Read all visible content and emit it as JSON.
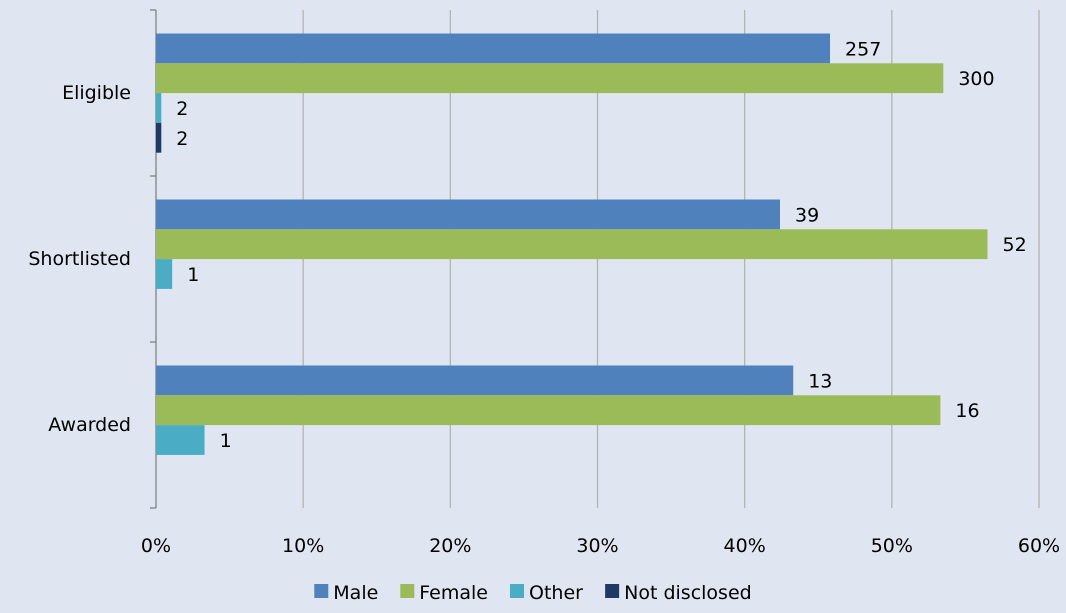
{
  "chart_data": {
    "type": "bar",
    "orientation": "horizontal",
    "categories": [
      "Eligible",
      "Shortlisted",
      "Awarded"
    ],
    "series": [
      {
        "name": "Male",
        "color": "#4f81bd",
        "values": [
          45.8,
          42.4,
          43.3
        ],
        "labels": [
          "257",
          "39",
          "13"
        ]
      },
      {
        "name": "Female",
        "color": "#9bbb59",
        "values": [
          53.5,
          56.5,
          53.3
        ],
        "labels": [
          "300",
          "52",
          "16"
        ]
      },
      {
        "name": "Other",
        "color": "#4bacc6",
        "values": [
          0.36,
          1.1,
          3.3
        ],
        "labels": [
          "2",
          "1",
          "1"
        ]
      },
      {
        "name": "Not disclosed",
        "color": "#1f3864",
        "values": [
          0.36,
          null,
          null
        ],
        "labels": [
          "2",
          null,
          null
        ]
      }
    ],
    "xlim": [
      0,
      60
    ],
    "x_ticks": [
      "0%",
      "10%",
      "20%",
      "30%",
      "40%",
      "50%",
      "60%"
    ],
    "grid": true,
    "legend_position": "bottom",
    "title": "",
    "xlabel": "",
    "ylabel": ""
  }
}
